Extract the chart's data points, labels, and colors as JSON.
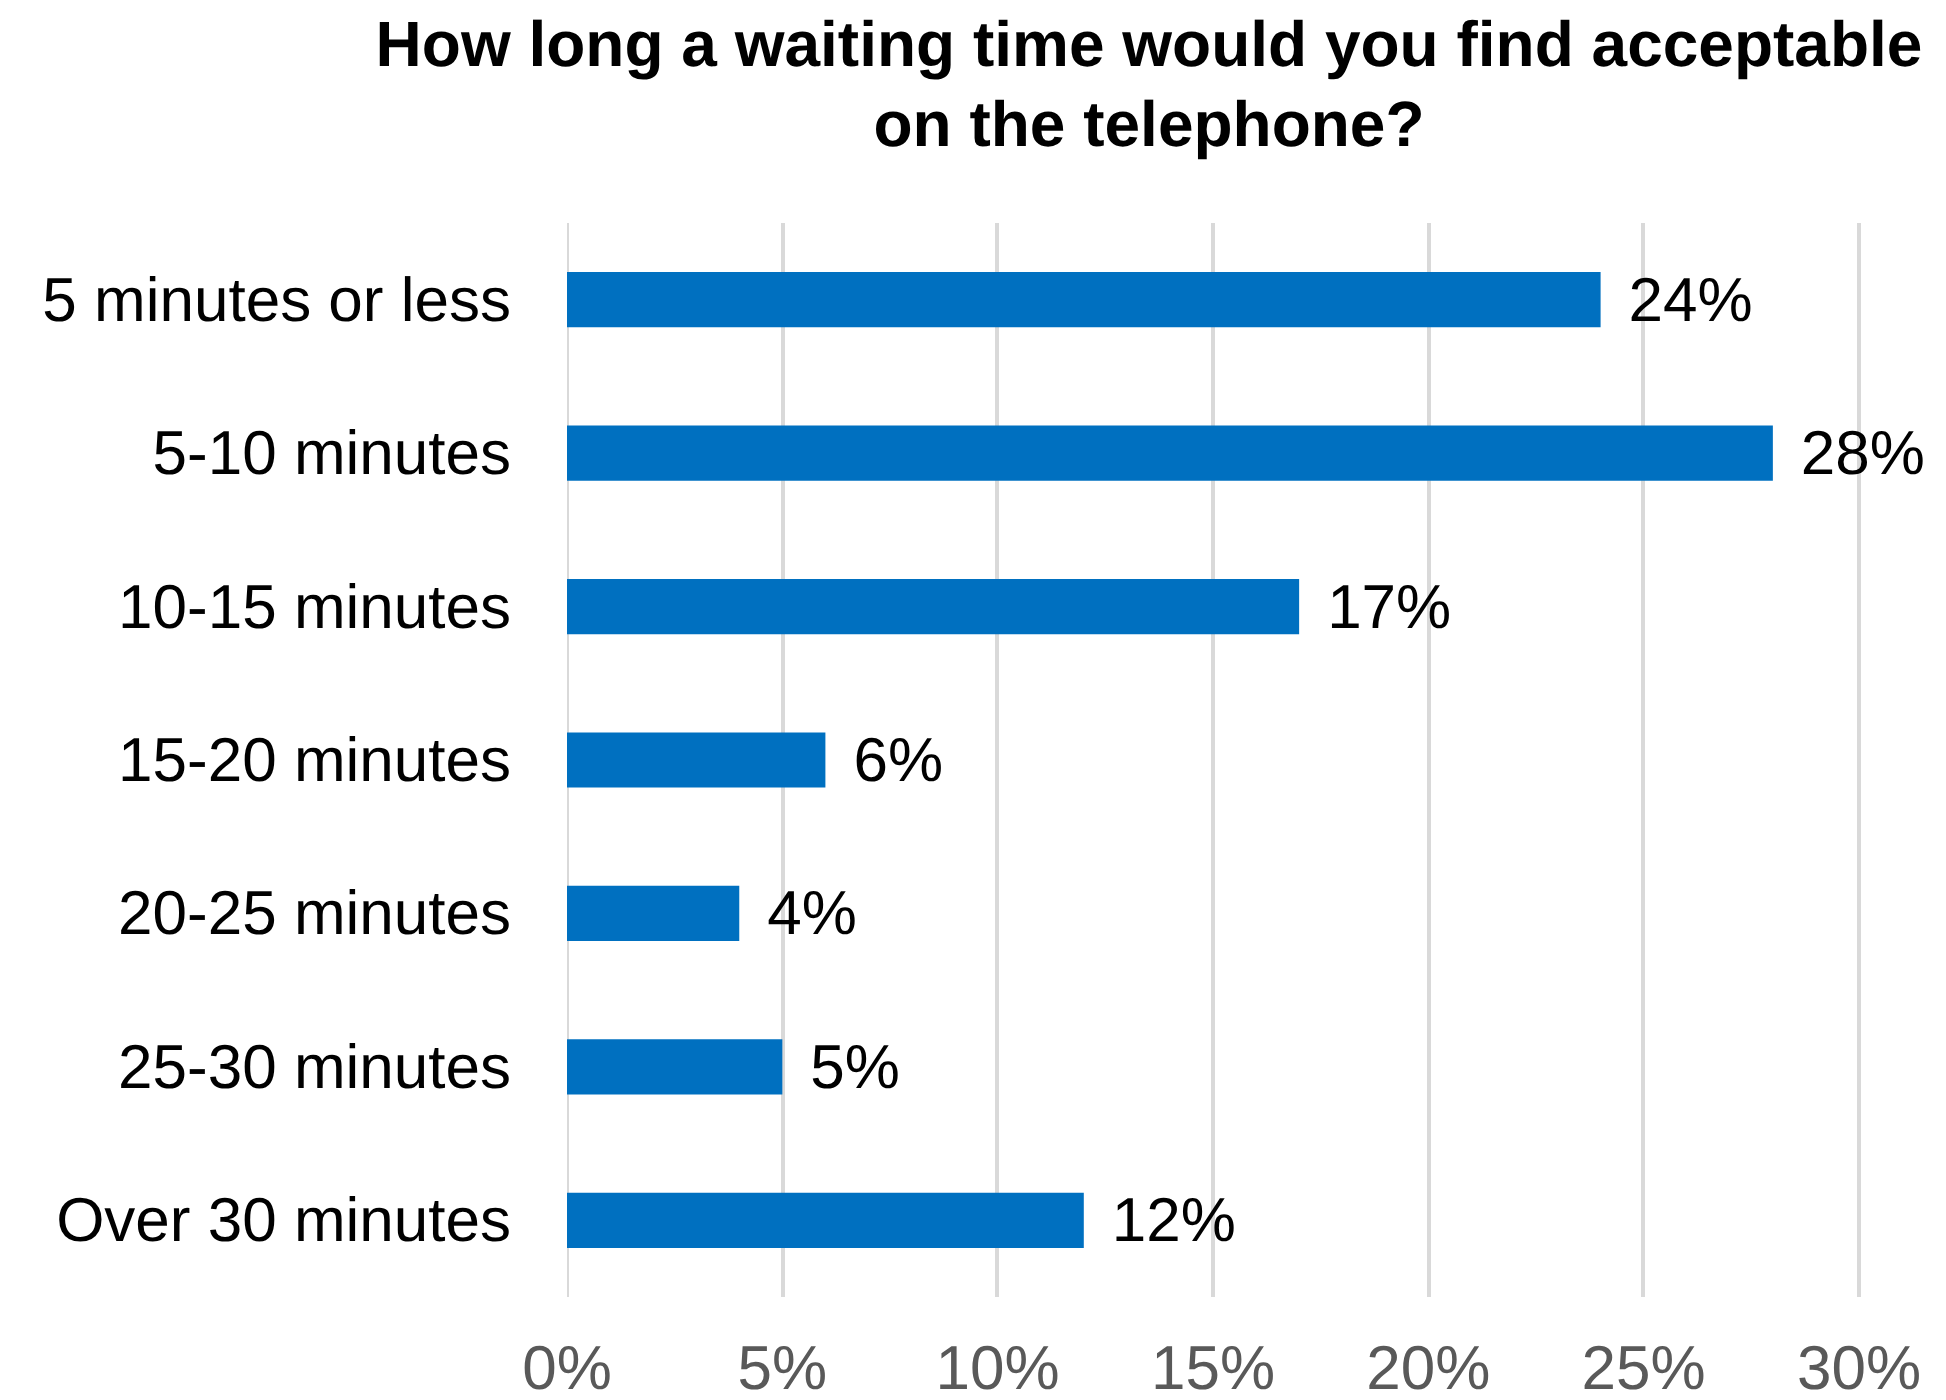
{
  "chart_data": {
    "type": "bar",
    "orientation": "horizontal",
    "title": "How long a waiting time would you find acceptable on the telephone?",
    "categories": [
      "5 minutes or less",
      "5-10 minutes",
      "10-15 minutes",
      "15-20 minutes",
      "20-25 minutes",
      "25-30 minutes",
      "Over 30 minutes"
    ],
    "values": [
      24,
      28,
      17,
      6,
      4,
      5,
      12
    ],
    "color": "#0070c0",
    "value_labels": [
      "24%",
      "28%",
      "17%",
      "6%",
      "4%",
      "5%",
      "12%"
    ],
    "xlim": [
      0,
      30
    ],
    "xticks": [
      {
        "value": 0,
        "label": "0%"
      },
      {
        "value": 5,
        "label": "5%"
      },
      {
        "value": 10,
        "label": "10%"
      },
      {
        "value": 15,
        "label": "15%"
      },
      {
        "value": 20,
        "label": "20%"
      },
      {
        "value": 25,
        "label": "25%"
      },
      {
        "value": 30,
        "label": "30%"
      }
    ],
    "grid": "x"
  }
}
